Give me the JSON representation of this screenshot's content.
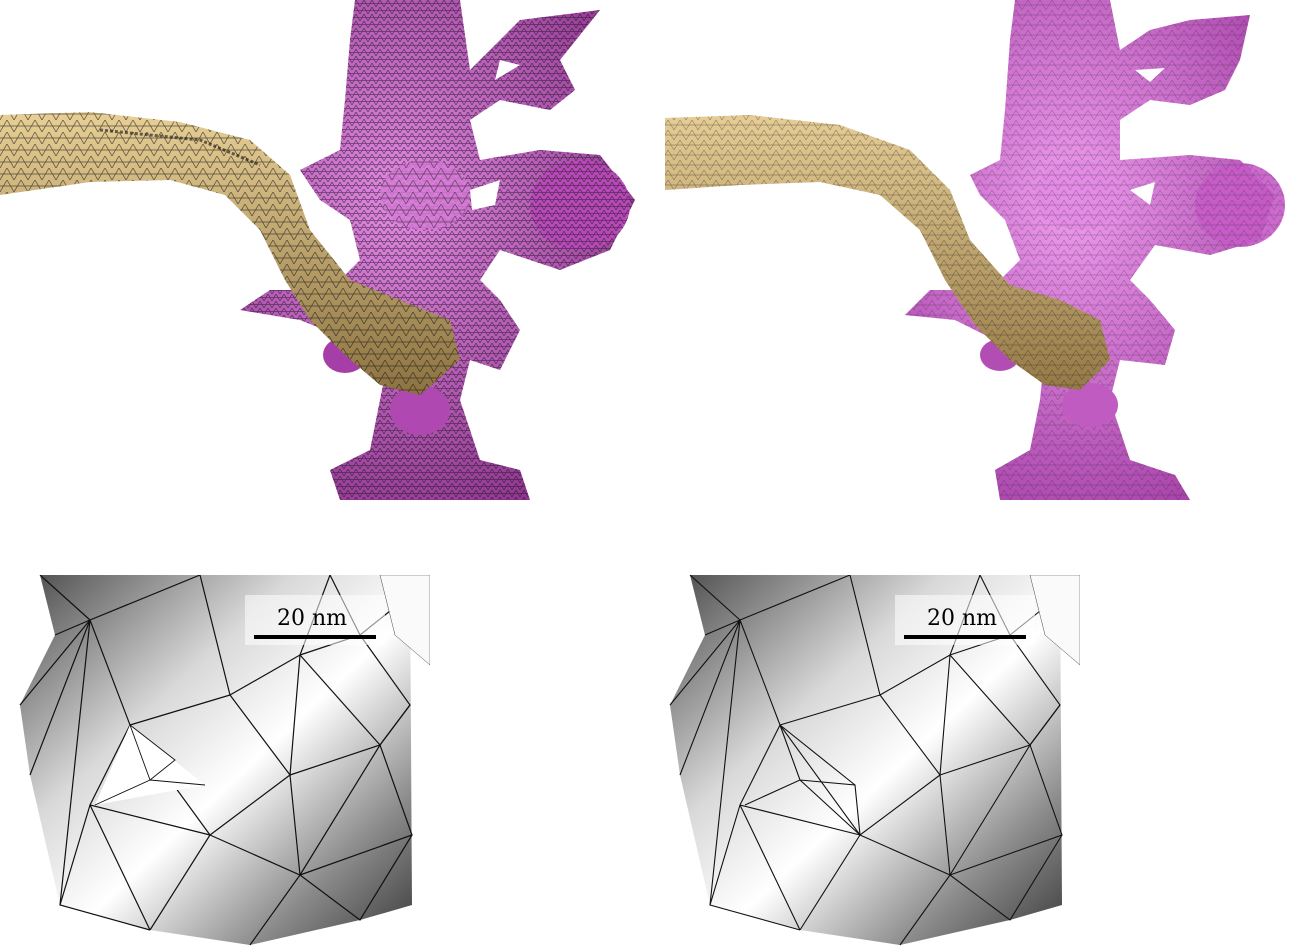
{
  "panels": [
    {
      "id": "top-left",
      "description_kind": "coarse-mesh"
    },
    {
      "id": "top-right",
      "description_kind": "fine-mesh"
    },
    {
      "id": "bottom-left",
      "description_kind": "closeup-coarse"
    },
    {
      "id": "bottom-right",
      "description_kind": "closeup-fine"
    }
  ],
  "scale_bar": {
    "label": "20 nm"
  },
  "colors": {
    "dendrite": "#c34fc6",
    "dendrite_dark": "#7a2a7e",
    "axon": "#c9a86a",
    "axon_dark": "#6f5a33",
    "mesh_line": "#1a1a1a",
    "closeup_light": "#f4f4f4",
    "closeup_dark": "#5a5a5a"
  }
}
